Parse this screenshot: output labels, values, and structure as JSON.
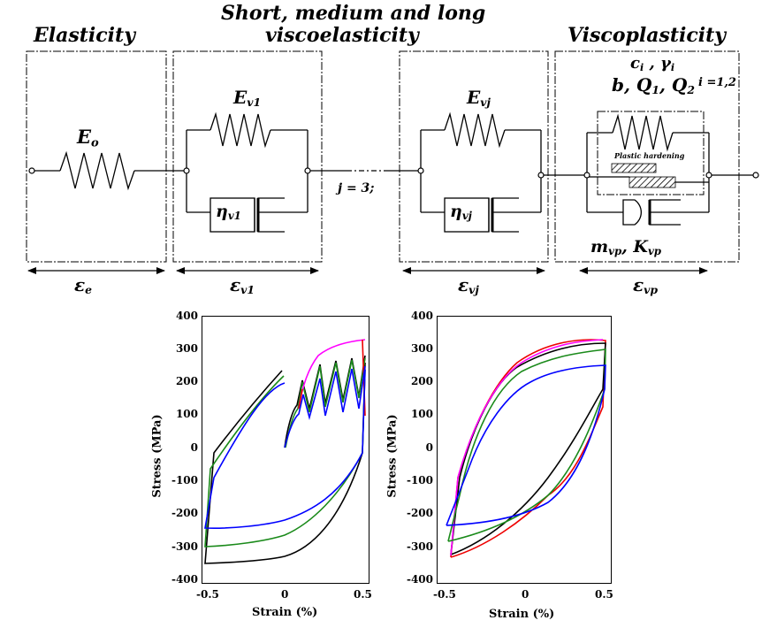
{
  "headings": {
    "elasticity": "Elasticity",
    "visco_line1": "Short, medium and long",
    "visco_line2": "viscoelasticity",
    "viscoplasticity": "Viscoplasticity"
  },
  "symbols": {
    "E_main": "E",
    "E_sub": "o",
    "Ev1_main": "E",
    "Ev1_sub": "v1",
    "eta_v1_main": "η",
    "eta_v1_sub": "v1",
    "Evj_main": "E",
    "Evj_sub": "vj",
    "eta_vj_main": "η",
    "eta_vj_sub": "vj",
    "j_label": "j = 3;",
    "ci_main": "c",
    "ci_sub": "i",
    "ci_sep": " , ",
    "gi_main": "γ",
    "gi_sub": "i",
    "i_label": "i =1,2",
    "bQ_b": "b, ",
    "Q1_main": "Q",
    "Q1_sub": "1",
    "bQ_sep": ", ",
    "Q2_main": "Q",
    "Q2_sub": "2",
    "plastic_hardening": "Plastic hardening",
    "mvp_main": "m",
    "mvp_sub": "vp",
    "mvp_sep": ", ",
    "Kvp_main": "K",
    "Kvp_sub": "vp",
    "eps_e_main": "ε",
    "eps_e_sub": "e",
    "eps_v1_main": "ε",
    "eps_v1_sub": "v1",
    "eps_vj_main": "ε",
    "eps_vj_sub": "vj",
    "eps_vp_main": "ε",
    "eps_vp_sub": "vp"
  },
  "plots": {
    "ylabel": "Stress (MPa)",
    "xlabel": "Strain (%)",
    "yticks": [
      "400",
      "300",
      "200",
      "100",
      "0",
      "-100",
      "-200",
      "-300",
      "-400"
    ],
    "xticks": [
      "-0.5",
      "0",
      "0.5"
    ]
  },
  "colors": {
    "magenta": "#ff00ff",
    "red": "#ee0000",
    "green": "#1a8a1a",
    "blue": "#0000ff",
    "black": "#000000"
  }
}
